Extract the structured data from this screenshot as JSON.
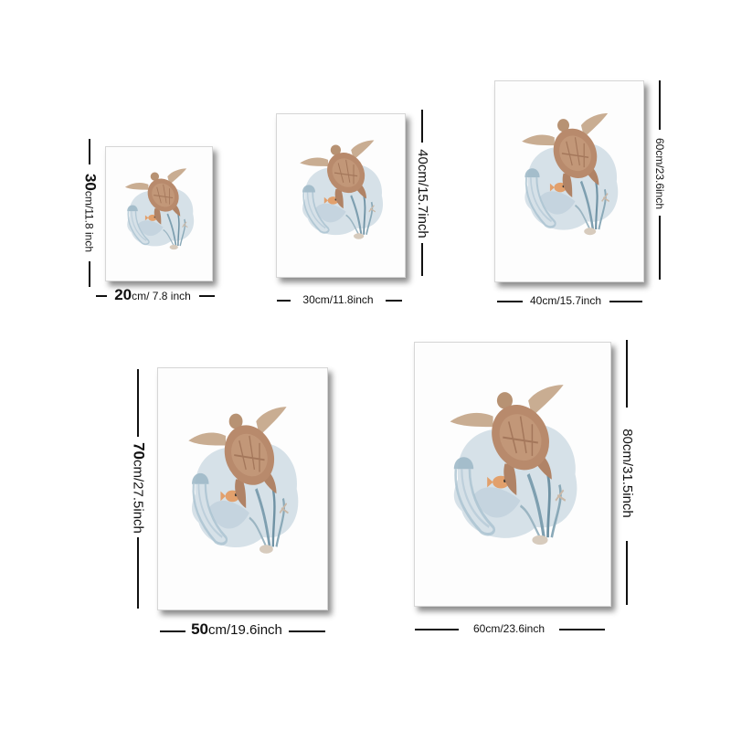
{
  "artwork": {
    "subject": "watercolor sea turtle with jellyfish, fish and seaweed",
    "colors": {
      "turtle": "#b88a6c",
      "water": "#cfdce4",
      "seaweed": "#7e9fb0",
      "fish": "#e2a06c"
    }
  },
  "sizes": [
    {
      "width_cm": "20",
      "width_in": "cm/ 7.8 inch",
      "height_cm": "30",
      "height_in": "cm/11.8 inch"
    },
    {
      "width_label": "30cm/11.8inch",
      "height_label": "40cm/15.7inch"
    },
    {
      "width_label": "40cm/15.7inch",
      "height_label": "60cm/23.6inch"
    },
    {
      "width_cm": "50",
      "width_in": "cm/19.6inch",
      "height_cm": "70",
      "height_in": "cm/27.5inch"
    },
    {
      "width_label": "60cm/23.6inch",
      "height_label": "80cm/31.5inch"
    }
  ]
}
